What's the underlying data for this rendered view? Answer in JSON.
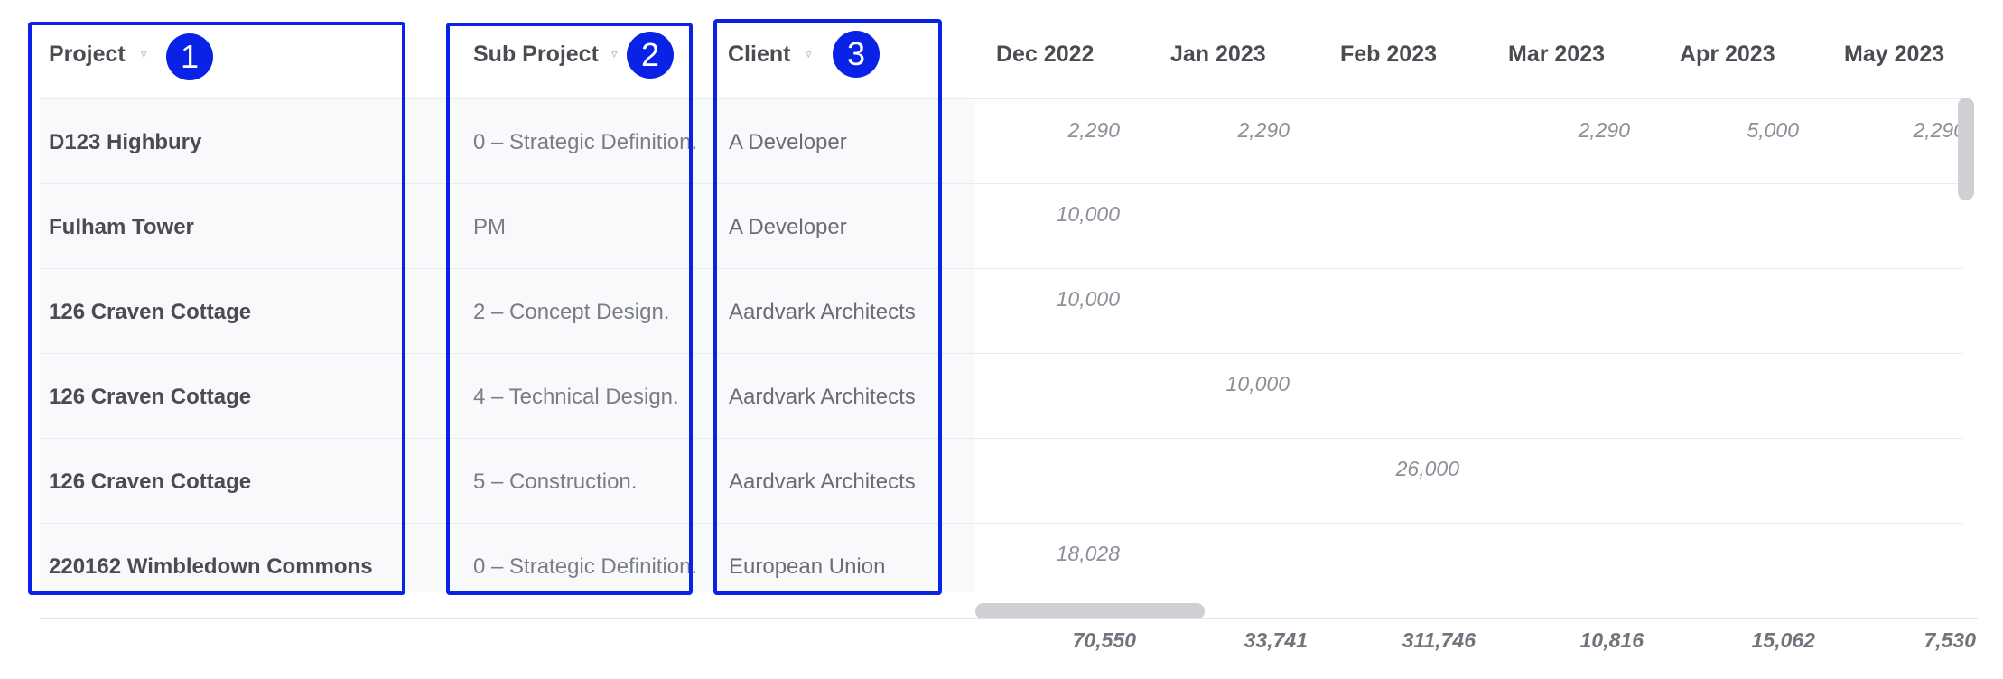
{
  "headers": {
    "project": "Project",
    "sub_project": "Sub Project",
    "client": "Client",
    "sort_icon": "▿"
  },
  "badges": [
    "1",
    "2",
    "3"
  ],
  "months": [
    "Dec 2022",
    "Jan 2023",
    "Feb 2023",
    "Mar 2023",
    "Apr 2023",
    "May 2023"
  ],
  "rows": [
    {
      "project": "D123 Highbury",
      "sub_project": "0 – Strategic Definition.",
      "client": "A Developer",
      "values": [
        "2,290",
        "2,290",
        "",
        "2,290",
        "5,000",
        "2,290"
      ]
    },
    {
      "project": "Fulham Tower",
      "sub_project": "PM",
      "client": "A Developer",
      "values": [
        "10,000",
        "",
        "",
        "",
        "",
        ""
      ]
    },
    {
      "project": "126 Craven Cottage",
      "sub_project": "2 – Concept Design.",
      "client": "Aardvark Architects",
      "values": [
        "10,000",
        "",
        "",
        "",
        "",
        ""
      ]
    },
    {
      "project": "126 Craven Cottage",
      "sub_project": "4 – Technical Design.",
      "client": "Aardvark Architects",
      "values": [
        "",
        "10,000",
        "",
        "",
        "",
        ""
      ]
    },
    {
      "project": "126 Craven Cottage",
      "sub_project": "5 – Construction.",
      "client": "Aardvark Architects",
      "values": [
        "",
        "",
        "26,000",
        "",
        "",
        ""
      ]
    },
    {
      "project": "220162 Wimbledown Commons",
      "sub_project": "0 – Strategic Definition.",
      "client": "European Union",
      "values": [
        "18,028",
        "",
        "",
        "",
        "",
        ""
      ]
    }
  ],
  "totals": [
    "70,550",
    "33,741",
    "311,746",
    "10,816",
    "15,062",
    "7,530"
  ]
}
